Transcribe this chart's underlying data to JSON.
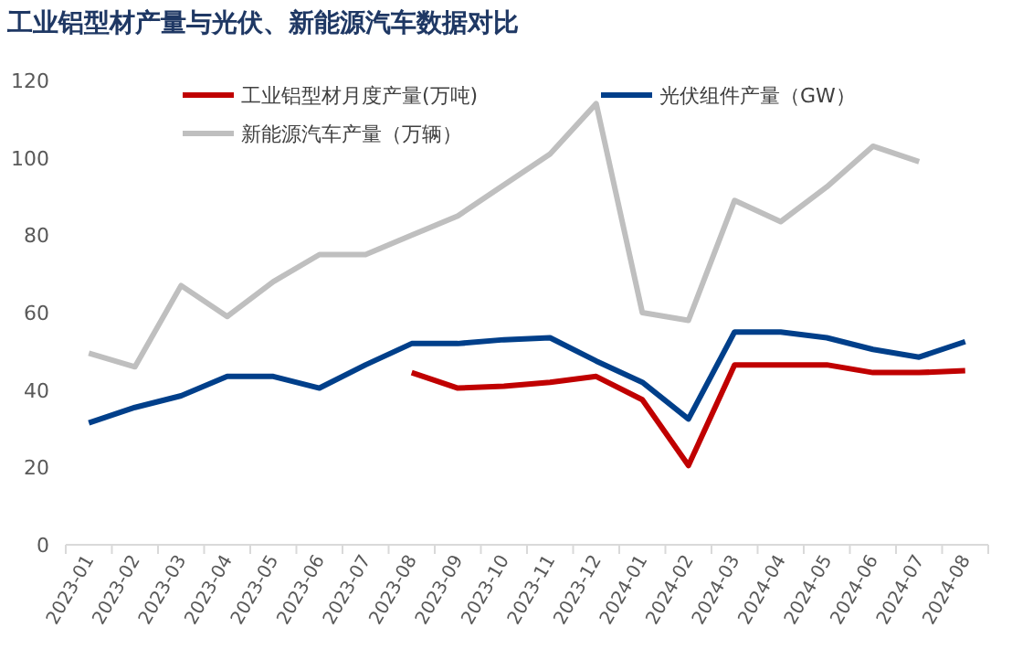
{
  "chart_data": {
    "type": "line",
    "title": "工业铝型材产量与光伏、新能源汽车数据对比",
    "categories": [
      "2023-01",
      "2023-02",
      "2023-03",
      "2023-04",
      "2023-05",
      "2023-06",
      "2023-07",
      "2023-08",
      "2023-09",
      "2023-10",
      "2023-11",
      "2023-12",
      "2024-01",
      "2024-02",
      "2024-03",
      "2024-04",
      "2024-05",
      "2024-06",
      "2024-07",
      "2024-08"
    ],
    "series": [
      {
        "name": "工业铝型材月度产量(万吨)",
        "color": "#c00000",
        "values": [
          null,
          null,
          null,
          null,
          null,
          null,
          null,
          44.5,
          40.5,
          41,
          42,
          43.5,
          37.5,
          20.5,
          46.5,
          46.5,
          46.5,
          44.5,
          44.5,
          45
        ]
      },
      {
        "name": "光伏组件产量（GW）",
        "color": "#003f8a",
        "values": [
          31.5,
          35.5,
          38.5,
          43.5,
          43.5,
          40.5,
          46.5,
          52,
          52,
          53,
          53.5,
          47.5,
          42,
          32.5,
          55,
          55,
          53.5,
          50.5,
          48.5,
          52.5
        ]
      },
      {
        "name": "新能源汽车产量（万辆）",
        "color": "#bfbfbf",
        "values": [
          49.5,
          46,
          67,
          59,
          68,
          75,
          75,
          80,
          85,
          93,
          101,
          114,
          60,
          58,
          89,
          83.5,
          92.5,
          103,
          99,
          null
        ]
      }
    ],
    "ylim": [
      0,
      120
    ],
    "yticks": [
      0,
      20,
      40,
      60,
      80,
      100,
      120
    ],
    "grid": false,
    "legend": "top"
  }
}
